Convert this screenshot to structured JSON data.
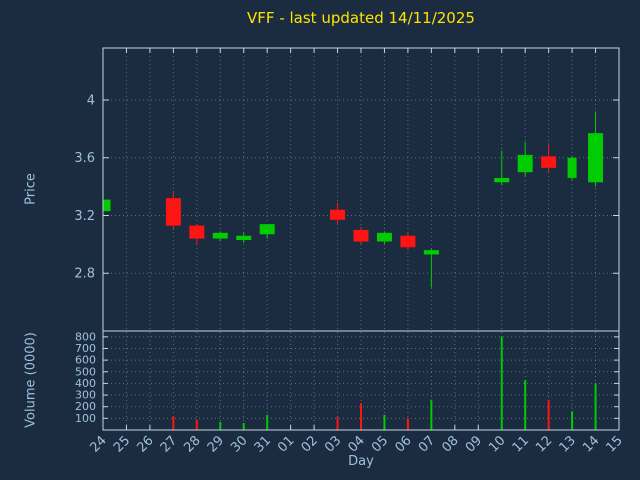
{
  "title": "VFF - last updated 14/11/2025",
  "axes": {
    "price_label": "Price",
    "volume_label": "Volume (0000)",
    "x_label": "Day"
  },
  "colors": {
    "background": "#1b2b40",
    "title": "#ffe400",
    "axis_text": "#9fc0dc",
    "border": "#c9d4df",
    "grid": "#8fa6ba",
    "up": "#00cc00",
    "down": "#ff1414"
  },
  "chart_data": {
    "type": "candlestick_with_volume",
    "title": "VFF - last updated 14/11/2025",
    "xlabel": "Day",
    "ylabel_price": "Price",
    "ylabel_volume": "Volume (0000)",
    "grid": true,
    "x_categories": [
      "24",
      "25",
      "26",
      "27",
      "28",
      "29",
      "30",
      "31",
      "01",
      "02",
      "03",
      "04",
      "05",
      "06",
      "07",
      "08",
      "09",
      "10",
      "11",
      "12",
      "13",
      "14",
      "15"
    ],
    "price_ticks": [
      2.8,
      3.2,
      3.6,
      4
    ],
    "price_range": [
      2.4,
      4.36
    ],
    "volume_ticks": [
      100,
      200,
      300,
      400,
      500,
      600,
      700,
      800
    ],
    "volume_range": [
      0,
      850
    ],
    "candles": [
      {
        "day": "24",
        "open": 3.23,
        "high": 3.32,
        "low": 3.21,
        "close": 3.31,
        "volume": 0
      },
      {
        "day": "27",
        "open": 3.32,
        "high": 3.37,
        "low": 3.1,
        "close": 3.13,
        "volume": 120
      },
      {
        "day": "28",
        "open": 3.13,
        "high": 3.14,
        "low": 3.0,
        "close": 3.04,
        "volume": 90
      },
      {
        "day": "29",
        "open": 3.04,
        "high": 3.09,
        "low": 3.02,
        "close": 3.08,
        "volume": 70
      },
      {
        "day": "30",
        "open": 3.03,
        "high": 3.08,
        "low": 3.01,
        "close": 3.06,
        "volume": 60
      },
      {
        "day": "31",
        "open": 3.07,
        "high": 3.14,
        "low": 3.04,
        "close": 3.14,
        "volume": 130
      },
      {
        "day": "03",
        "open": 3.24,
        "high": 3.29,
        "low": 3.14,
        "close": 3.17,
        "volume": 110
      },
      {
        "day": "04",
        "open": 3.1,
        "high": 3.12,
        "low": 3.0,
        "close": 3.02,
        "volume": 230
      },
      {
        "day": "05",
        "open": 3.02,
        "high": 3.09,
        "low": 3.0,
        "close": 3.08,
        "volume": 130
      },
      {
        "day": "06",
        "open": 3.06,
        "high": 3.08,
        "low": 2.96,
        "close": 2.98,
        "volume": 100
      },
      {
        "day": "07",
        "open": 2.93,
        "high": 2.97,
        "low": 2.7,
        "close": 2.96,
        "volume": 260
      },
      {
        "day": "10",
        "open": 3.43,
        "high": 3.65,
        "low": 3.41,
        "close": 3.46,
        "volume": 800
      },
      {
        "day": "11",
        "open": 3.5,
        "high": 3.71,
        "low": 3.47,
        "close": 3.62,
        "volume": 430
      },
      {
        "day": "12",
        "open": 3.61,
        "high": 3.7,
        "low": 3.5,
        "close": 3.53,
        "volume": 260
      },
      {
        "day": "13",
        "open": 3.46,
        "high": 3.61,
        "low": 3.44,
        "close": 3.6,
        "volume": 160,
        "narrow": true
      },
      {
        "day": "14",
        "open": 3.43,
        "high": 3.92,
        "low": 3.4,
        "close": 3.77,
        "volume": 400
      }
    ]
  }
}
